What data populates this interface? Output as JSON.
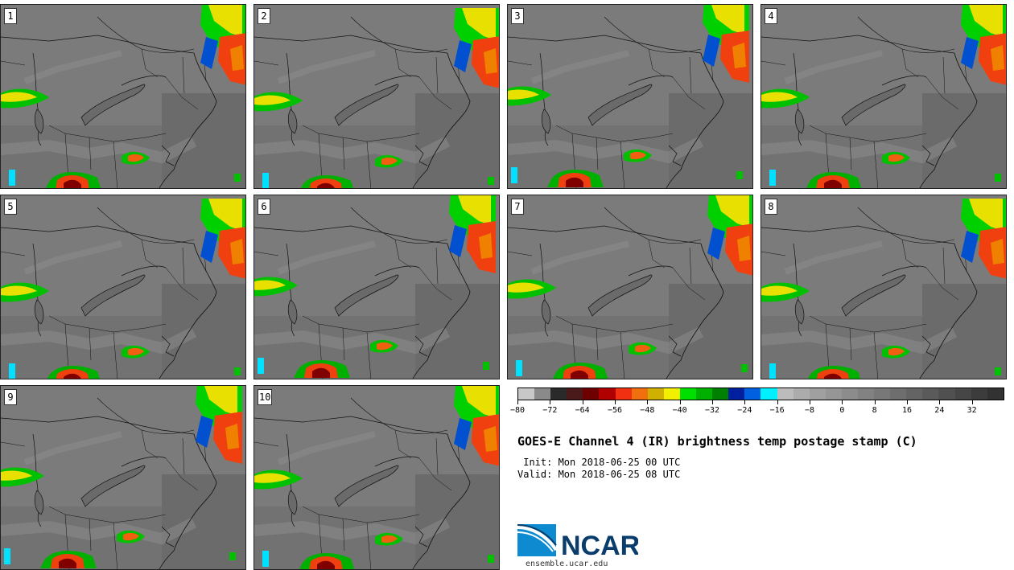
{
  "panels": [
    {
      "id": "1"
    },
    {
      "id": "2"
    },
    {
      "id": "3"
    },
    {
      "id": "4"
    },
    {
      "id": "5"
    },
    {
      "id": "6"
    },
    {
      "id": "7"
    },
    {
      "id": "8"
    },
    {
      "id": "9"
    },
    {
      "id": "10"
    }
  ],
  "colorbar": {
    "colors": [
      "#c8c8c8",
      "#8a8a8a",
      "#2a2a2a",
      "#4a1a1a",
      "#6e0000",
      "#b00000",
      "#f03010",
      "#f07010",
      "#d0b000",
      "#f0f000",
      "#00e000",
      "#00b000",
      "#008000",
      "#0020a0",
      "#0060e0",
      "#00f0ff",
      "#bcbcbc",
      "#acacac",
      "#a0a0a0",
      "#969696",
      "#8c8c8c",
      "#828282",
      "#787878",
      "#6e6e6e",
      "#646464",
      "#5a5a5a",
      "#505050",
      "#464646",
      "#3c3c3c",
      "#323232"
    ],
    "tick_labels": [
      "−80",
      "−72",
      "−64",
      "−56",
      "−48",
      "−40",
      "−32",
      "−24",
      "−16",
      "−8",
      "0",
      "8",
      "16",
      "24",
      "32"
    ]
  },
  "title": "GOES-E Channel 4 (IR) brightness temp postage stamp (C)",
  "init_line": " Init: Mon 2018-06-25 00 UTC",
  "valid_line": "Valid: Mon 2018-06-25 08 UTC",
  "logo": {
    "text": "NCAR",
    "url": "ensemble.ucar.edu",
    "color": "#0a3d6b",
    "accent": "#0d8ad0"
  }
}
